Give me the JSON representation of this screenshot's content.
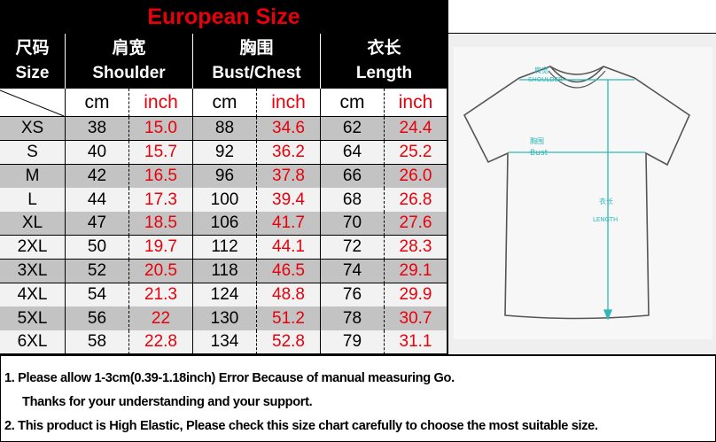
{
  "title": "European Size",
  "headers": [
    {
      "cn": "尺码",
      "en": "Size"
    },
    {
      "cn": "肩宽",
      "en": "Shoulder"
    },
    {
      "cn": "胸围",
      "en": "Bust/Chest"
    },
    {
      "cn": "衣长",
      "en": "Length"
    }
  ],
  "units": {
    "cm": "cm",
    "inch": "inch"
  },
  "rows": [
    {
      "size": "XS",
      "shoulder_cm": "38",
      "shoulder_in": "15.0",
      "bust_cm": "88",
      "bust_in": "34.6",
      "length_cm": "62",
      "length_in": "24.4"
    },
    {
      "size": "S",
      "shoulder_cm": "40",
      "shoulder_in": "15.7",
      "bust_cm": "92",
      "bust_in": "36.2",
      "length_cm": "64",
      "length_in": "25.2"
    },
    {
      "size": "M",
      "shoulder_cm": "42",
      "shoulder_in": "16.5",
      "bust_cm": "96",
      "bust_in": "37.8",
      "length_cm": "66",
      "length_in": "26.0"
    },
    {
      "size": "L",
      "shoulder_cm": "44",
      "shoulder_in": "17.3",
      "bust_cm": "100",
      "bust_in": "39.4",
      "length_cm": "68",
      "length_in": "26.8"
    },
    {
      "size": "XL",
      "shoulder_cm": "47",
      "shoulder_in": "18.5",
      "bust_cm": "106",
      "bust_in": "41.7",
      "length_cm": "70",
      "length_in": "27.6"
    },
    {
      "size": "2XL",
      "shoulder_cm": "50",
      "shoulder_in": "19.7",
      "bust_cm": "112",
      "bust_in": "44.1",
      "length_cm": "72",
      "length_in": "28.3"
    },
    {
      "size": "3XL",
      "shoulder_cm": "52",
      "shoulder_in": "20.5",
      "bust_cm": "118",
      "bust_in": "46.5",
      "length_cm": "74",
      "length_in": "29.1"
    },
    {
      "size": "4XL",
      "shoulder_cm": "54",
      "shoulder_in": "21.3",
      "bust_cm": "124",
      "bust_in": "48.8",
      "length_cm": "76",
      "length_in": "29.9"
    },
    {
      "size": "5XL",
      "shoulder_cm": "56",
      "shoulder_in": "22",
      "bust_cm": "130",
      "bust_in": "51.2",
      "length_cm": "78",
      "length_in": "30.7"
    },
    {
      "size": "6XL",
      "shoulder_cm": "58",
      "shoulder_in": "22.8",
      "bust_cm": "134",
      "bust_in": "52.8",
      "length_cm": "79",
      "length_in": "31.1"
    }
  ],
  "diagram": {
    "shoulder_cn": "肩宽",
    "shoulder_en": "SHOULDER",
    "bust_cn": "胸围",
    "bust_en": "Bust",
    "length_cn": "衣长",
    "length_en": "LENGTH"
  },
  "notes": {
    "line1": "1. Please allow 1-3cm(0.39-1.18inch) Error Because of manual measuring Go.",
    "line1b": "Thanks for your understanding  and your support.",
    "line2": "2. This product is High Elastic, Please check this size chart carefully to choose the most suitable size."
  },
  "colors": {
    "title_red": "#e8000b",
    "inch_red": "#e8000b",
    "header_bg": "#000000",
    "row_gray": "#c3c3c3",
    "row_white": "#f2f2f2",
    "diagram_line": "#2fb8b8"
  }
}
